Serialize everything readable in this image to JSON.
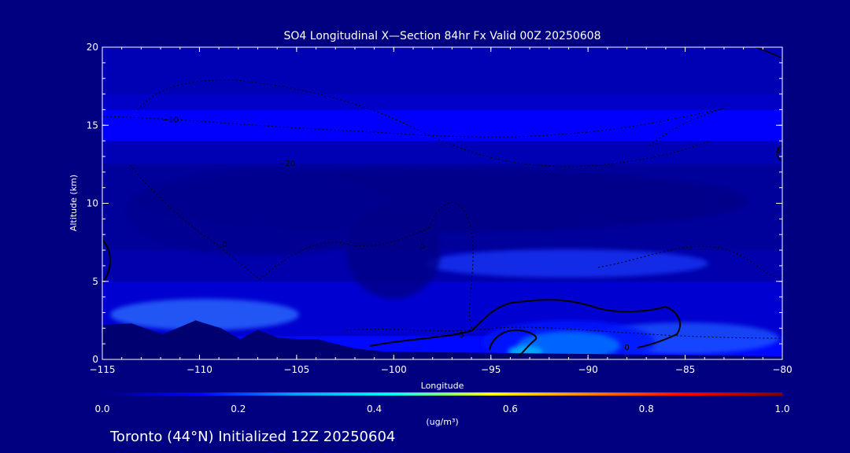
{
  "chart_data": {
    "type": "heatmap",
    "title": "SO4 Longitudinal X—Section 84hr  Fx Valid 00Z 20250608",
    "xlabel": "Longitude",
    "ylabel": "Altitude (km)",
    "xlim": [
      -115,
      -80
    ],
    "ylim": [
      0,
      20
    ],
    "x_ticks": [
      "−115",
      "−110",
      "−105",
      "−100",
      "−95",
      "−90",
      "−85",
      "−80"
    ],
    "x_tick_values": [
      -115,
      -110,
      -105,
      -100,
      -95,
      -90,
      -85,
      -80
    ],
    "y_ticks": [
      "0",
      "5",
      "10",
      "15",
      "20"
    ],
    "y_tick_values": [
      0,
      5,
      10,
      15,
      20
    ],
    "colorbar": {
      "min": 0.0,
      "max": 1.0,
      "ticks": [
        "0.0",
        "0.2",
        "0.4",
        "0.6",
        "0.8",
        "1.0"
      ],
      "tick_values": [
        0.0,
        0.2,
        0.4,
        0.6,
        0.8,
        1.0
      ],
      "units": "(ug/m³)",
      "colors": [
        "#000080",
        "#0000ff",
        "#00a0ff",
        "#00ffff",
        "#ffff00",
        "#ff8000",
        "#ff0000",
        "#800000"
      ]
    },
    "so4_bands_km": [
      {
        "altitude_range": [
          0,
          1.5
        ],
        "value": 0.15
      },
      {
        "altitude_range": [
          1.5,
          5
        ],
        "value": 0.09
      },
      {
        "altitude_range": [
          5,
          7
        ],
        "value": 0.05
      },
      {
        "altitude_range": [
          7,
          12.5
        ],
        "value": 0.03
      },
      {
        "altitude_range": [
          12.5,
          14
        ],
        "value": 0.06
      },
      {
        "altitude_range": [
          14,
          16
        ],
        "value": 0.14
      },
      {
        "altitude_range": [
          16,
          17
        ],
        "value": 0.08
      },
      {
        "altitude_range": [
          17,
          20
        ],
        "value": 0.06
      }
    ],
    "plume_maximum": {
      "longitude": -91,
      "altitude": 1.5,
      "value": 0.3
    },
    "temperature_contour_labels": [
      {
        "label": "−10",
        "longitude": -111.5,
        "altitude": 15.2
      },
      {
        "label": "−20",
        "longitude": -105.5,
        "altitude": 12.4
      },
      {
        "label": "0",
        "longitude": -108.7,
        "altitude": 7.2
      },
      {
        "label": "5",
        "longitude": -98.5,
        "altitude": 7.1
      },
      {
        "label": "5",
        "longitude": -96.5,
        "altitude": 1.4
      },
      {
        "label": "0",
        "longitude": -88.0,
        "altitude": 0.6
      },
      {
        "label": "5",
        "longitude": -80.2,
        "altitude": 13.2
      }
    ],
    "terrain_km": [
      {
        "lon": -115,
        "alt": 2.2
      },
      {
        "lon": -113.5,
        "alt": 2.3
      },
      {
        "lon": -111.9,
        "alt": 1.6
      },
      {
        "lon": -110.2,
        "alt": 2.5
      },
      {
        "lon": -108.9,
        "alt": 2.0
      },
      {
        "lon": -107.9,
        "alt": 1.3
      },
      {
        "lon": -107.0,
        "alt": 1.9
      },
      {
        "lon": -106.0,
        "alt": 1.4
      },
      {
        "lon": -104.9,
        "alt": 1.3
      },
      {
        "lon": -103.9,
        "alt": 1.3
      },
      {
        "lon": -103.0,
        "alt": 1.0
      },
      {
        "lon": -102.0,
        "alt": 0.7
      },
      {
        "lon": -101.3,
        "alt": 0.6
      },
      {
        "lon": -100.5,
        "alt": 0.5
      },
      {
        "lon": -80,
        "alt": 0.2
      }
    ]
  },
  "footer": {
    "station": "Toronto (44°N) Initialized 12Z 20250604"
  },
  "colors": {
    "background": "#000080",
    "text": "#ffffff",
    "terrain": "#000070"
  }
}
